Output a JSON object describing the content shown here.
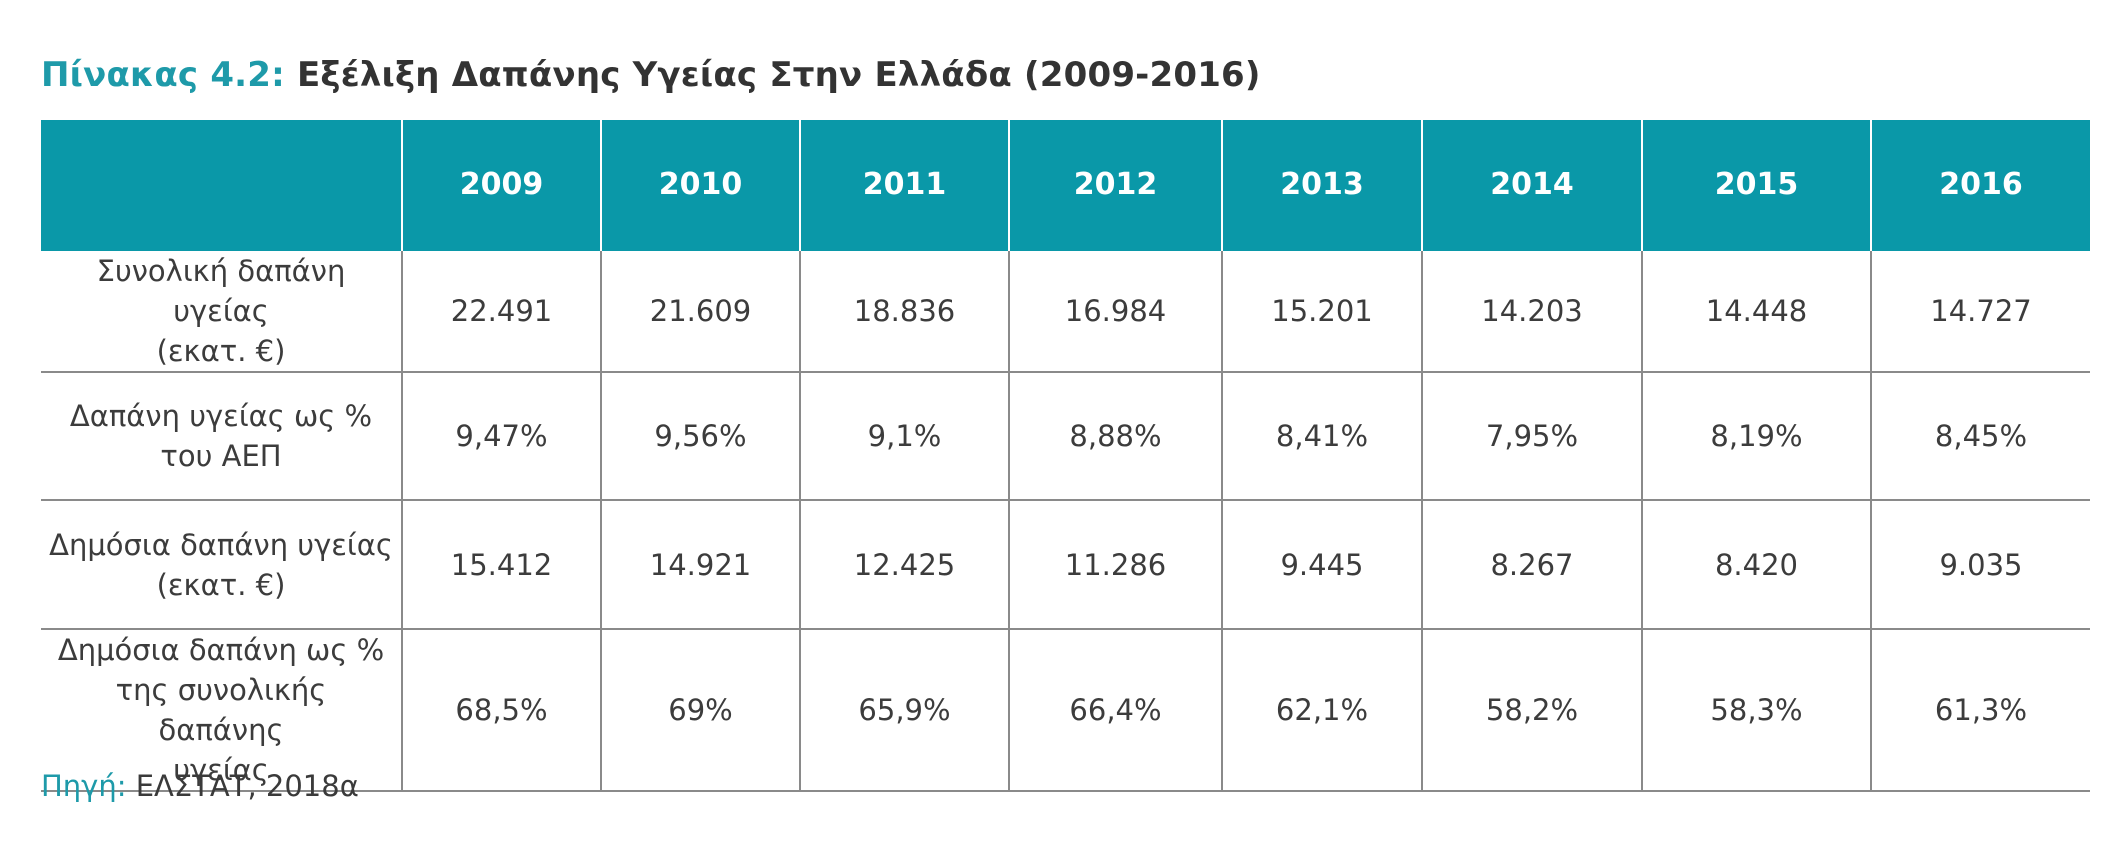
{
  "title": {
    "prefix": "Πίνακας 4.2:",
    "text": "Εξέλιξη Δαπάνης Υγείας Στην Ελλάδα (2009-2016)"
  },
  "table": {
    "corner": "",
    "years": [
      "2009",
      "2010",
      "2011",
      "2012",
      "2013",
      "2014",
      "2015",
      "2016"
    ],
    "rows": [
      {
        "label_lines": [
          "Συνολική δαπάνη υγείας",
          "(εκατ. €)"
        ],
        "values": [
          "22.491",
          "21.609",
          "18.836",
          "16.984",
          "15.201",
          "14.203",
          "14.448",
          "14.727"
        ]
      },
      {
        "label_lines": [
          "Δαπάνη υγείας ως %",
          "του ΑΕΠ"
        ],
        "values": [
          "9,47%",
          "9,56%",
          "9,1%",
          "8,88%",
          "8,41%",
          "7,95%",
          "8,19%",
          "8,45%"
        ]
      },
      {
        "label_lines": [
          "Δημόσια δαπάνη υγείας",
          "(εκατ. €)"
        ],
        "values": [
          "15.412",
          "14.921",
          "12.425",
          "11.286",
          "9.445",
          "8.267",
          "8.420",
          "9.035"
        ]
      },
      {
        "label_lines": [
          "Δημόσια δαπάνη ως %",
          "της συνολικής δαπάνης",
          "υγείας"
        ],
        "values": [
          "68,5%",
          "69%",
          "65,9%",
          "66,4%",
          "62,1%",
          "58,2%",
          "58,3%",
          "61,3%"
        ]
      }
    ]
  },
  "source": {
    "label": "Πηγή:",
    "text": "ΕΛΣΤΑΤ, 2018α"
  },
  "colors": {
    "accent": "#0a98a8",
    "title_prefix": "#1e9aa9",
    "text": "#3a3a3a",
    "grid": "#8a8a8a"
  }
}
